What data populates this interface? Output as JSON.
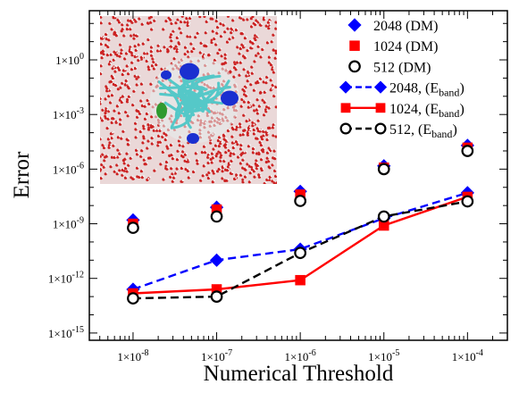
{
  "chart_data": {
    "type": "scatter",
    "title": "",
    "xlabel": "Numerical Threshold",
    "ylabel": "Error",
    "x_scale": "log",
    "y_scale": "log",
    "xlim": [
      3e-09,
      0.0003
    ],
    "ylim": [
      4e-16,
      500.0
    ],
    "x_ticks": [
      1e-08,
      1e-07,
      1e-06,
      1e-05,
      0.0001
    ],
    "x_tick_labels": [
      {
        "base": "1×10",
        "exp": "-8"
      },
      {
        "base": "1×10",
        "exp": "-7"
      },
      {
        "base": "1×10",
        "exp": "-6"
      },
      {
        "base": "1×10",
        "exp": "-5"
      },
      {
        "base": "1×10",
        "exp": "-4"
      }
    ],
    "y_ticks": [
      1e-15,
      1e-12,
      1e-09,
      1e-06,
      0.001,
      1.0
    ],
    "y_tick_labels": [
      {
        "base": "1×10",
        "exp": "-15"
      },
      {
        "base": "1×10",
        "exp": "-12"
      },
      {
        "base": "1×10",
        "exp": "-9"
      },
      {
        "base": "1×10",
        "exp": "-6"
      },
      {
        "base": "1×10",
        "exp": "-3"
      },
      {
        "base": "1×10",
        "exp": "0"
      }
    ],
    "x": [
      1e-08,
      1e-07,
      1e-06,
      1e-05,
      0.0001
    ],
    "legend_position": "top-right",
    "grid": false,
    "series": [
      {
        "name": "2048 (DM)",
        "marker": "diamond",
        "style": "markers",
        "color": "#0000ff",
        "values": [
          1.6e-09,
          8e-09,
          6e-08,
          1.5e-06,
          2e-05
        ]
      },
      {
        "name": "1024 (DM)",
        "marker": "square",
        "style": "markers",
        "color": "#ff0000",
        "values": [
          1e-09,
          6e-09,
          4e-08,
          1.2e-06,
          1.5e-05
        ]
      },
      {
        "name": "512 (DM)",
        "marker": "circle",
        "style": "markers",
        "color": "#000000",
        "values": [
          6e-10,
          2.5e-09,
          1.8e-08,
          1e-06,
          1e-05
        ]
      },
      {
        "name": "2048, (E",
        "name_sub": "band",
        "name_end": ")",
        "marker": "diamond",
        "style": "dashed",
        "color": "#0000ff",
        "values": [
          2.5e-13,
          1e-11,
          4e-11,
          2e-09,
          5e-08
        ]
      },
      {
        "name": "1024, (E",
        "name_sub": "band",
        "name_end": ")",
        "marker": "square",
        "style": "solid",
        "color": "#ff0000",
        "values": [
          1.5e-13,
          2.5e-13,
          8e-13,
          8e-10,
          3e-08
        ]
      },
      {
        "name": "512, (E",
        "name_sub": "band",
        "name_end": ")",
        "marker": "circle",
        "style": "dashed",
        "color": "#000000",
        "values": [
          8e-14,
          1e-13,
          2.5e-11,
          2.5e-09,
          1.7e-08
        ]
      }
    ]
  },
  "inset": {
    "picture": "molecular-render",
    "colors": {
      "water_oxygen": "#cc2222",
      "water_hydrogen": "#f2f2f2",
      "protein": "#55c8c8",
      "highlight": "#1a2fd0",
      "ligand": "#2f9a2f"
    }
  }
}
